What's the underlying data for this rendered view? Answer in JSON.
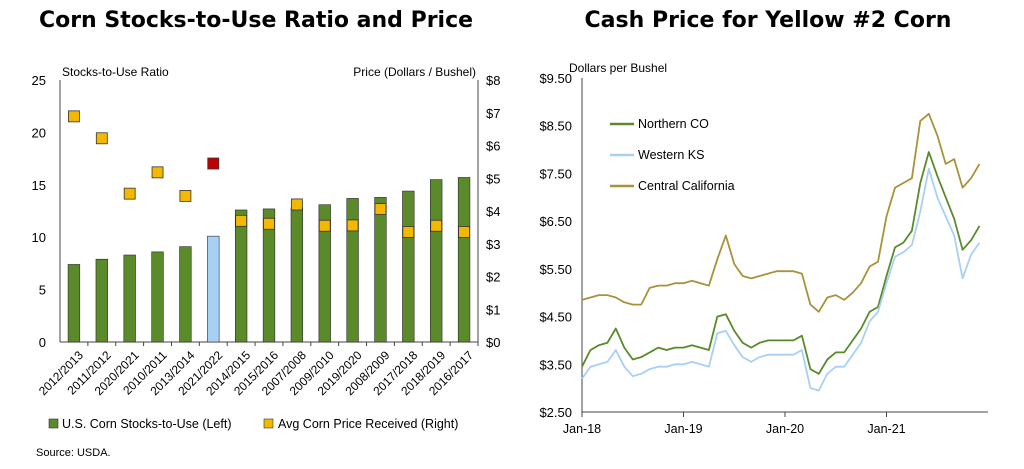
{
  "source": "Source: USDA.",
  "chart_data": [
    {
      "type": "bar",
      "title": "Corn Stocks-to-Use Ratio and Price",
      "ylabel": "Stocks-to-Use Ratio",
      "y2label": "Price (Dollars / Bushel)",
      "ylim": [
        0,
        25
      ],
      "yticks": [
        "0",
        "5",
        "10",
        "15",
        "20",
        "25"
      ],
      "y2lim": [
        0,
        8
      ],
      "y2ticks": [
        "$0",
        "$1",
        "$2",
        "$3",
        "$4",
        "$5",
        "$6",
        "$7",
        "$8"
      ],
      "categories": [
        "2012/2013",
        "2011/2012",
        "2020/2021",
        "2010/2011",
        "2013/2014",
        "2021/2022",
        "2014/2015",
        "2015/2016",
        "2007/2008",
        "2009/2010",
        "2019/2020",
        "2008/2009",
        "2017/2018",
        "2018/2019",
        "2016/2017"
      ],
      "series": [
        {
          "name": "U.S. Corn Stocks-to-Use (Left)",
          "kind": "bar",
          "color": "#5a8a2a",
          "highlight_color": "#a8d0f5",
          "highlight_index": 5,
          "values": [
            7.4,
            7.9,
            8.3,
            8.6,
            9.1,
            10.1,
            12.6,
            12.7,
            12.8,
            13.1,
            13.7,
            13.8,
            14.4,
            15.5,
            15.7
          ]
        },
        {
          "name": "Avg Corn Price Received (Right)",
          "kind": "marker",
          "color": "#f5b800",
          "highlight_color": "#c00000",
          "highlight_index": 5,
          "values": [
            6.89,
            6.22,
            4.53,
            5.18,
            4.46,
            5.45,
            3.7,
            3.61,
            4.2,
            3.55,
            3.56,
            4.06,
            3.36,
            3.55,
            3.36
          ]
        }
      ],
      "legend_position": "bottom"
    },
    {
      "type": "line",
      "title": "Cash Price for Yellow #2 Corn",
      "ylabel": "Dollars per Bushel",
      "ylim": [
        2.5,
        9.5
      ],
      "yticks": [
        "$2.50",
        "$3.50",
        "$4.50",
        "$5.50",
        "$6.50",
        "$7.50",
        "$8.50",
        "$9.50"
      ],
      "xlim": [
        "2018-01",
        "2021-12"
      ],
      "xticks": [
        "Jan-18",
        "Jan-19",
        "Jan-20",
        "Jan-21"
      ],
      "x": [
        "2018-01",
        "2018-02",
        "2018-03",
        "2018-04",
        "2018-05",
        "2018-06",
        "2018-07",
        "2018-08",
        "2018-09",
        "2018-10",
        "2018-11",
        "2018-12",
        "2019-01",
        "2019-02",
        "2019-03",
        "2019-04",
        "2019-05",
        "2019-06",
        "2019-07",
        "2019-08",
        "2019-09",
        "2019-10",
        "2019-11",
        "2019-12",
        "2020-01",
        "2020-02",
        "2020-03",
        "2020-04",
        "2020-05",
        "2020-06",
        "2020-07",
        "2020-08",
        "2020-09",
        "2020-10",
        "2020-11",
        "2020-12",
        "2021-01",
        "2021-02",
        "2021-03",
        "2021-04",
        "2021-05",
        "2021-06",
        "2021-07",
        "2021-08",
        "2021-09",
        "2021-10",
        "2021-11",
        "2021-12"
      ],
      "series": [
        {
          "name": "Northern CO",
          "color": "#5a8a2a",
          "values": [
            3.45,
            3.8,
            3.9,
            3.95,
            4.25,
            3.85,
            3.6,
            3.65,
            3.75,
            3.85,
            3.8,
            3.85,
            3.85,
            3.9,
            3.85,
            3.8,
            4.5,
            4.55,
            4.2,
            3.95,
            3.85,
            3.95,
            4.0,
            4.0,
            4.0,
            4.0,
            4.1,
            3.4,
            3.3,
            3.6,
            3.75,
            3.75,
            4.0,
            4.25,
            4.6,
            4.7,
            5.35,
            5.95,
            6.05,
            6.3,
            7.3,
            7.95,
            7.45,
            7.0,
            6.55,
            5.9,
            6.1,
            6.4
          ]
        },
        {
          "name": "Western KS",
          "color": "#a8d0f5",
          "values": [
            3.2,
            3.45,
            3.5,
            3.55,
            3.8,
            3.45,
            3.25,
            3.3,
            3.4,
            3.45,
            3.45,
            3.5,
            3.5,
            3.55,
            3.5,
            3.45,
            4.15,
            4.2,
            3.9,
            3.65,
            3.55,
            3.65,
            3.7,
            3.7,
            3.7,
            3.7,
            3.8,
            3.0,
            2.95,
            3.3,
            3.45,
            3.45,
            3.7,
            3.95,
            4.4,
            4.6,
            5.2,
            5.75,
            5.85,
            6.0,
            6.7,
            7.6,
            7.0,
            6.6,
            6.2,
            5.3,
            5.8,
            6.05
          ]
        },
        {
          "name": "Central California",
          "color": "#a8923a",
          "values": [
            4.85,
            4.9,
            4.95,
            4.95,
            4.9,
            4.8,
            4.75,
            4.75,
            5.1,
            5.15,
            5.15,
            5.2,
            5.2,
            5.25,
            5.2,
            5.15,
            5.7,
            6.2,
            5.6,
            5.35,
            5.3,
            5.35,
            5.4,
            5.45,
            5.45,
            5.45,
            5.4,
            4.75,
            4.6,
            4.9,
            4.95,
            4.85,
            5.0,
            5.2,
            5.55,
            5.65,
            6.6,
            7.2,
            7.3,
            7.4,
            8.6,
            8.75,
            8.3,
            7.7,
            7.8,
            7.2,
            7.4,
            7.7
          ]
        }
      ],
      "legend_position": "top-left"
    }
  ]
}
